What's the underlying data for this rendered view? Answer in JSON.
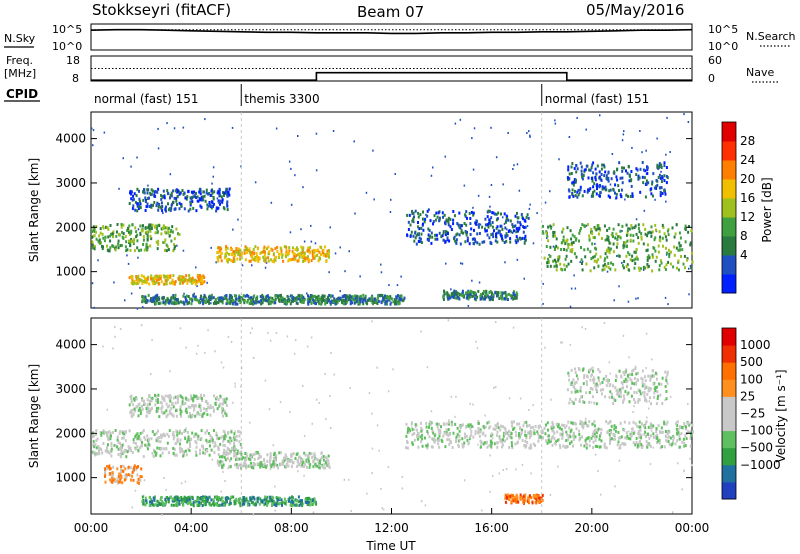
{
  "header": {
    "station": "Stokkseyri (fitACF)",
    "beam": "Beam 07",
    "date": "05/May/2016"
  },
  "labels": {
    "nsky": "N.Sky",
    "nsearch": "N.Search",
    "freq_line1": "Freq.",
    "freq_line2": "[MHz]",
    "nave": "Nave",
    "cpid": "CPID"
  },
  "chart_data": [
    {
      "type": "line",
      "panel": "noise",
      "left_ticks": [
        "10^5",
        "10^0"
      ],
      "right_ticks": [
        "10^5",
        "10^0"
      ],
      "series": [
        {
          "name": "N.Sky",
          "x": [
            0,
            1,
            2,
            3,
            4,
            5,
            6,
            7,
            8,
            9,
            10,
            11,
            12,
            13,
            14,
            15,
            16,
            17,
            18,
            19,
            20,
            21,
            22,
            23,
            24
          ],
          "y_log10": [
            3.8,
            3.9,
            3.9,
            3.8,
            3.7,
            3.6,
            3.5,
            3.4,
            3.4,
            3.3,
            3.3,
            3.3,
            3.2,
            3.2,
            3.3,
            3.3,
            3.4,
            3.4,
            3.5,
            3.5,
            3.6,
            3.7,
            3.8,
            3.8,
            3.9
          ]
        },
        {
          "name": "N.Search",
          "x": [
            0,
            24
          ],
          "y_log10": [
            3.9,
            3.9
          ]
        }
      ]
    },
    {
      "type": "line",
      "panel": "frequency",
      "left_ticks": [
        "18",
        "8"
      ],
      "right_ticks": [
        "60",
        "0"
      ],
      "series": [
        {
          "name": "Freq.",
          "x": [
            0,
            24
          ],
          "y": [
            13,
            13
          ]
        },
        {
          "name": "Nave",
          "x": [
            0,
            9,
            9,
            19,
            19,
            24
          ],
          "y": [
            2,
            2,
            20,
            20,
            2,
            2
          ]
        }
      ]
    },
    {
      "type": "table",
      "panel": "cpid",
      "segments": [
        {
          "label": "normal (fast) 151",
          "start": 0,
          "end": 6
        },
        {
          "label": "themis 3300",
          "start": 6,
          "end": 18
        },
        {
          "label": "normal (fast) 151",
          "start": 18,
          "end": 24
        }
      ]
    },
    {
      "type": "heatmap",
      "panel": "power",
      "ylabel": "Slant Range [km]",
      "yticks": [
        "4000",
        "3000",
        "2000",
        "1000"
      ],
      "xlim": [
        0,
        24
      ],
      "ylim": [
        180,
        4600
      ],
      "colorbar_label": "Power [dB]",
      "colorbar_ticks": [
        "28",
        "24",
        "20",
        "16",
        "12",
        "8",
        "4"
      ],
      "colorbar_colors": [
        "#0020ff",
        "#2050c0",
        "#2a7a40",
        "#40a040",
        "#a0c020",
        "#f0c000",
        "#ff8000",
        "#ff3000",
        "#e00000"
      ],
      "bands": [
        {
          "t0": 0.0,
          "t1": 3.5,
          "r0": 1500,
          "r1": 2100,
          "lvl": 3
        },
        {
          "t0": 1.5,
          "t1": 5.5,
          "r0": 2400,
          "r1": 2900,
          "lvl": 1
        },
        {
          "t0": 5.0,
          "t1": 9.5,
          "r0": 1250,
          "r1": 1600,
          "lvl": 5
        },
        {
          "t0": 1.5,
          "t1": 4.5,
          "r0": 750,
          "r1": 950,
          "lvl": 5
        },
        {
          "t0": 2.0,
          "t1": 12.5,
          "r0": 300,
          "r1": 500,
          "lvl": 2
        },
        {
          "t0": 12.5,
          "t1": 17.5,
          "r0": 1650,
          "r1": 2400,
          "lvl": 1
        },
        {
          "t0": 14.0,
          "t1": 17.0,
          "r0": 400,
          "r1": 600,
          "lvl": 2
        },
        {
          "t0": 18.0,
          "t1": 24.0,
          "r0": 1050,
          "r1": 2100,
          "lvl": 3
        },
        {
          "t0": 19.0,
          "t1": 23.0,
          "r0": 2700,
          "r1": 3500,
          "lvl": 1
        }
      ]
    },
    {
      "type": "heatmap",
      "panel": "velocity",
      "xlabel": "Time UT",
      "ylabel": "Slant Range [km]",
      "yticks": [
        "4000",
        "3000",
        "2000",
        "1000"
      ],
      "xlim": [
        0,
        24
      ],
      "ylim": [
        180,
        4600
      ],
      "xticks": [
        "00:00",
        "04:00",
        "08:00",
        "12:00",
        "16:00",
        "20:00",
        "00:00"
      ],
      "colorbar_label": "Velocity [m s⁻¹]",
      "colorbar_ticks": [
        "1000",
        "500",
        "100",
        "25",
        "−25",
        "−100",
        "−500",
        "−1000"
      ],
      "colorbar_colors": [
        "#2040c0",
        "#2070a0",
        "#30a040",
        "#60c060",
        "#c8c8c8",
        "#c8c8c8",
        "#ff9020",
        "#ff7000",
        "#f03000",
        "#e00000"
      ],
      "bands": [
        {
          "t0": 0.0,
          "t1": 6.0,
          "r0": 1500,
          "r1": 2100,
          "lvl": 4
        },
        {
          "t0": 1.5,
          "t1": 5.5,
          "r0": 2400,
          "r1": 2900,
          "lvl": 4
        },
        {
          "t0": 5.0,
          "t1": 9.5,
          "r0": 1250,
          "r1": 1600,
          "lvl": 4
        },
        {
          "t0": 0.5,
          "t1": 2.0,
          "r0": 900,
          "r1": 1300,
          "lvl": 6
        },
        {
          "t0": 2.0,
          "t1": 9.0,
          "r0": 400,
          "r1": 600,
          "lvl": 2
        },
        {
          "t0": 12.5,
          "t1": 24.0,
          "r0": 1700,
          "r1": 2300,
          "lvl": 4
        },
        {
          "t0": 16.5,
          "t1": 18.0,
          "r0": 450,
          "r1": 650,
          "lvl": 7
        },
        {
          "t0": 19.0,
          "t1": 23.0,
          "r0": 2700,
          "r1": 3500,
          "lvl": 4
        }
      ]
    }
  ]
}
